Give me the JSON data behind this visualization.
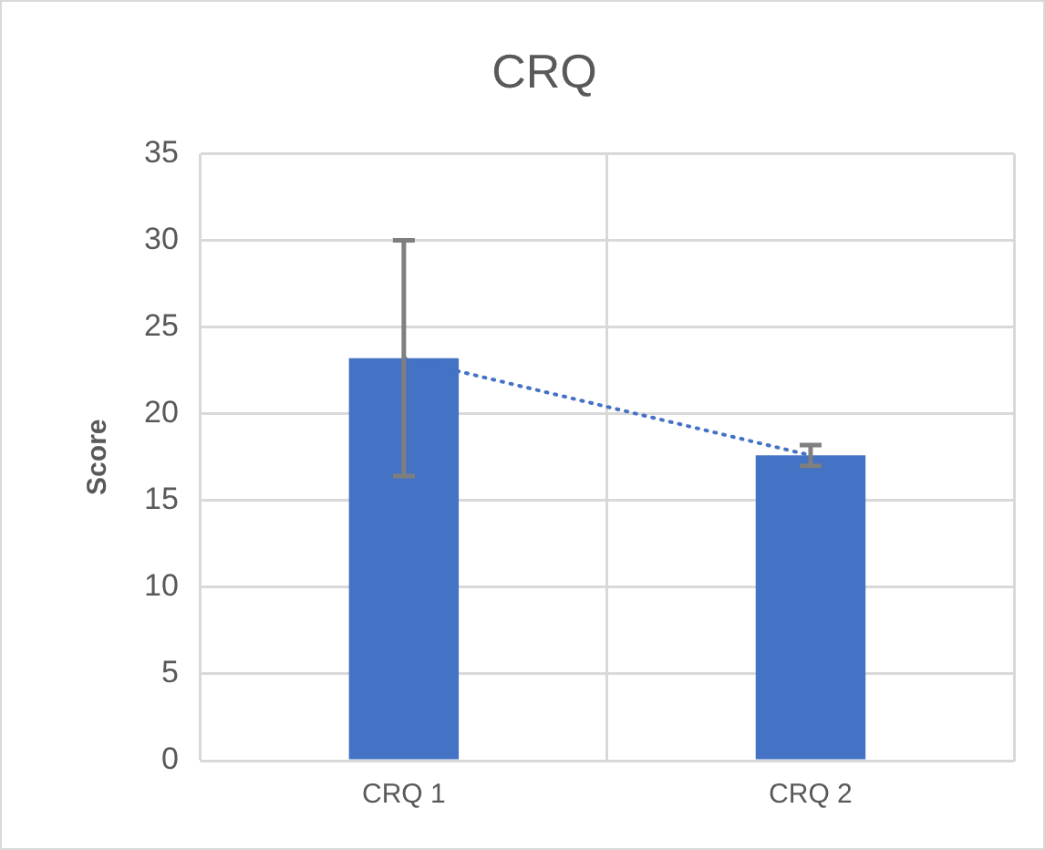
{
  "chart_data": {
    "type": "bar",
    "title": "CRQ",
    "ylabel": "Score",
    "categories": [
      "CRQ 1",
      "CRQ 2"
    ],
    "series": [
      {
        "color": "#4472c4",
        "values": [
          23.2,
          17.6
        ],
        "errors": [
          6.8,
          0.6
        ]
      },
      {
        "type": "line",
        "color": "#4472c4",
        "values": [
          23.2,
          17.6
        ],
        "line_style": "dotted"
      }
    ],
    "ylim": [
      0,
      35
    ],
    "yticks": [
      0,
      5,
      10,
      15,
      20,
      25,
      30,
      35
    ],
    "grid": true,
    "legend": false
  }
}
